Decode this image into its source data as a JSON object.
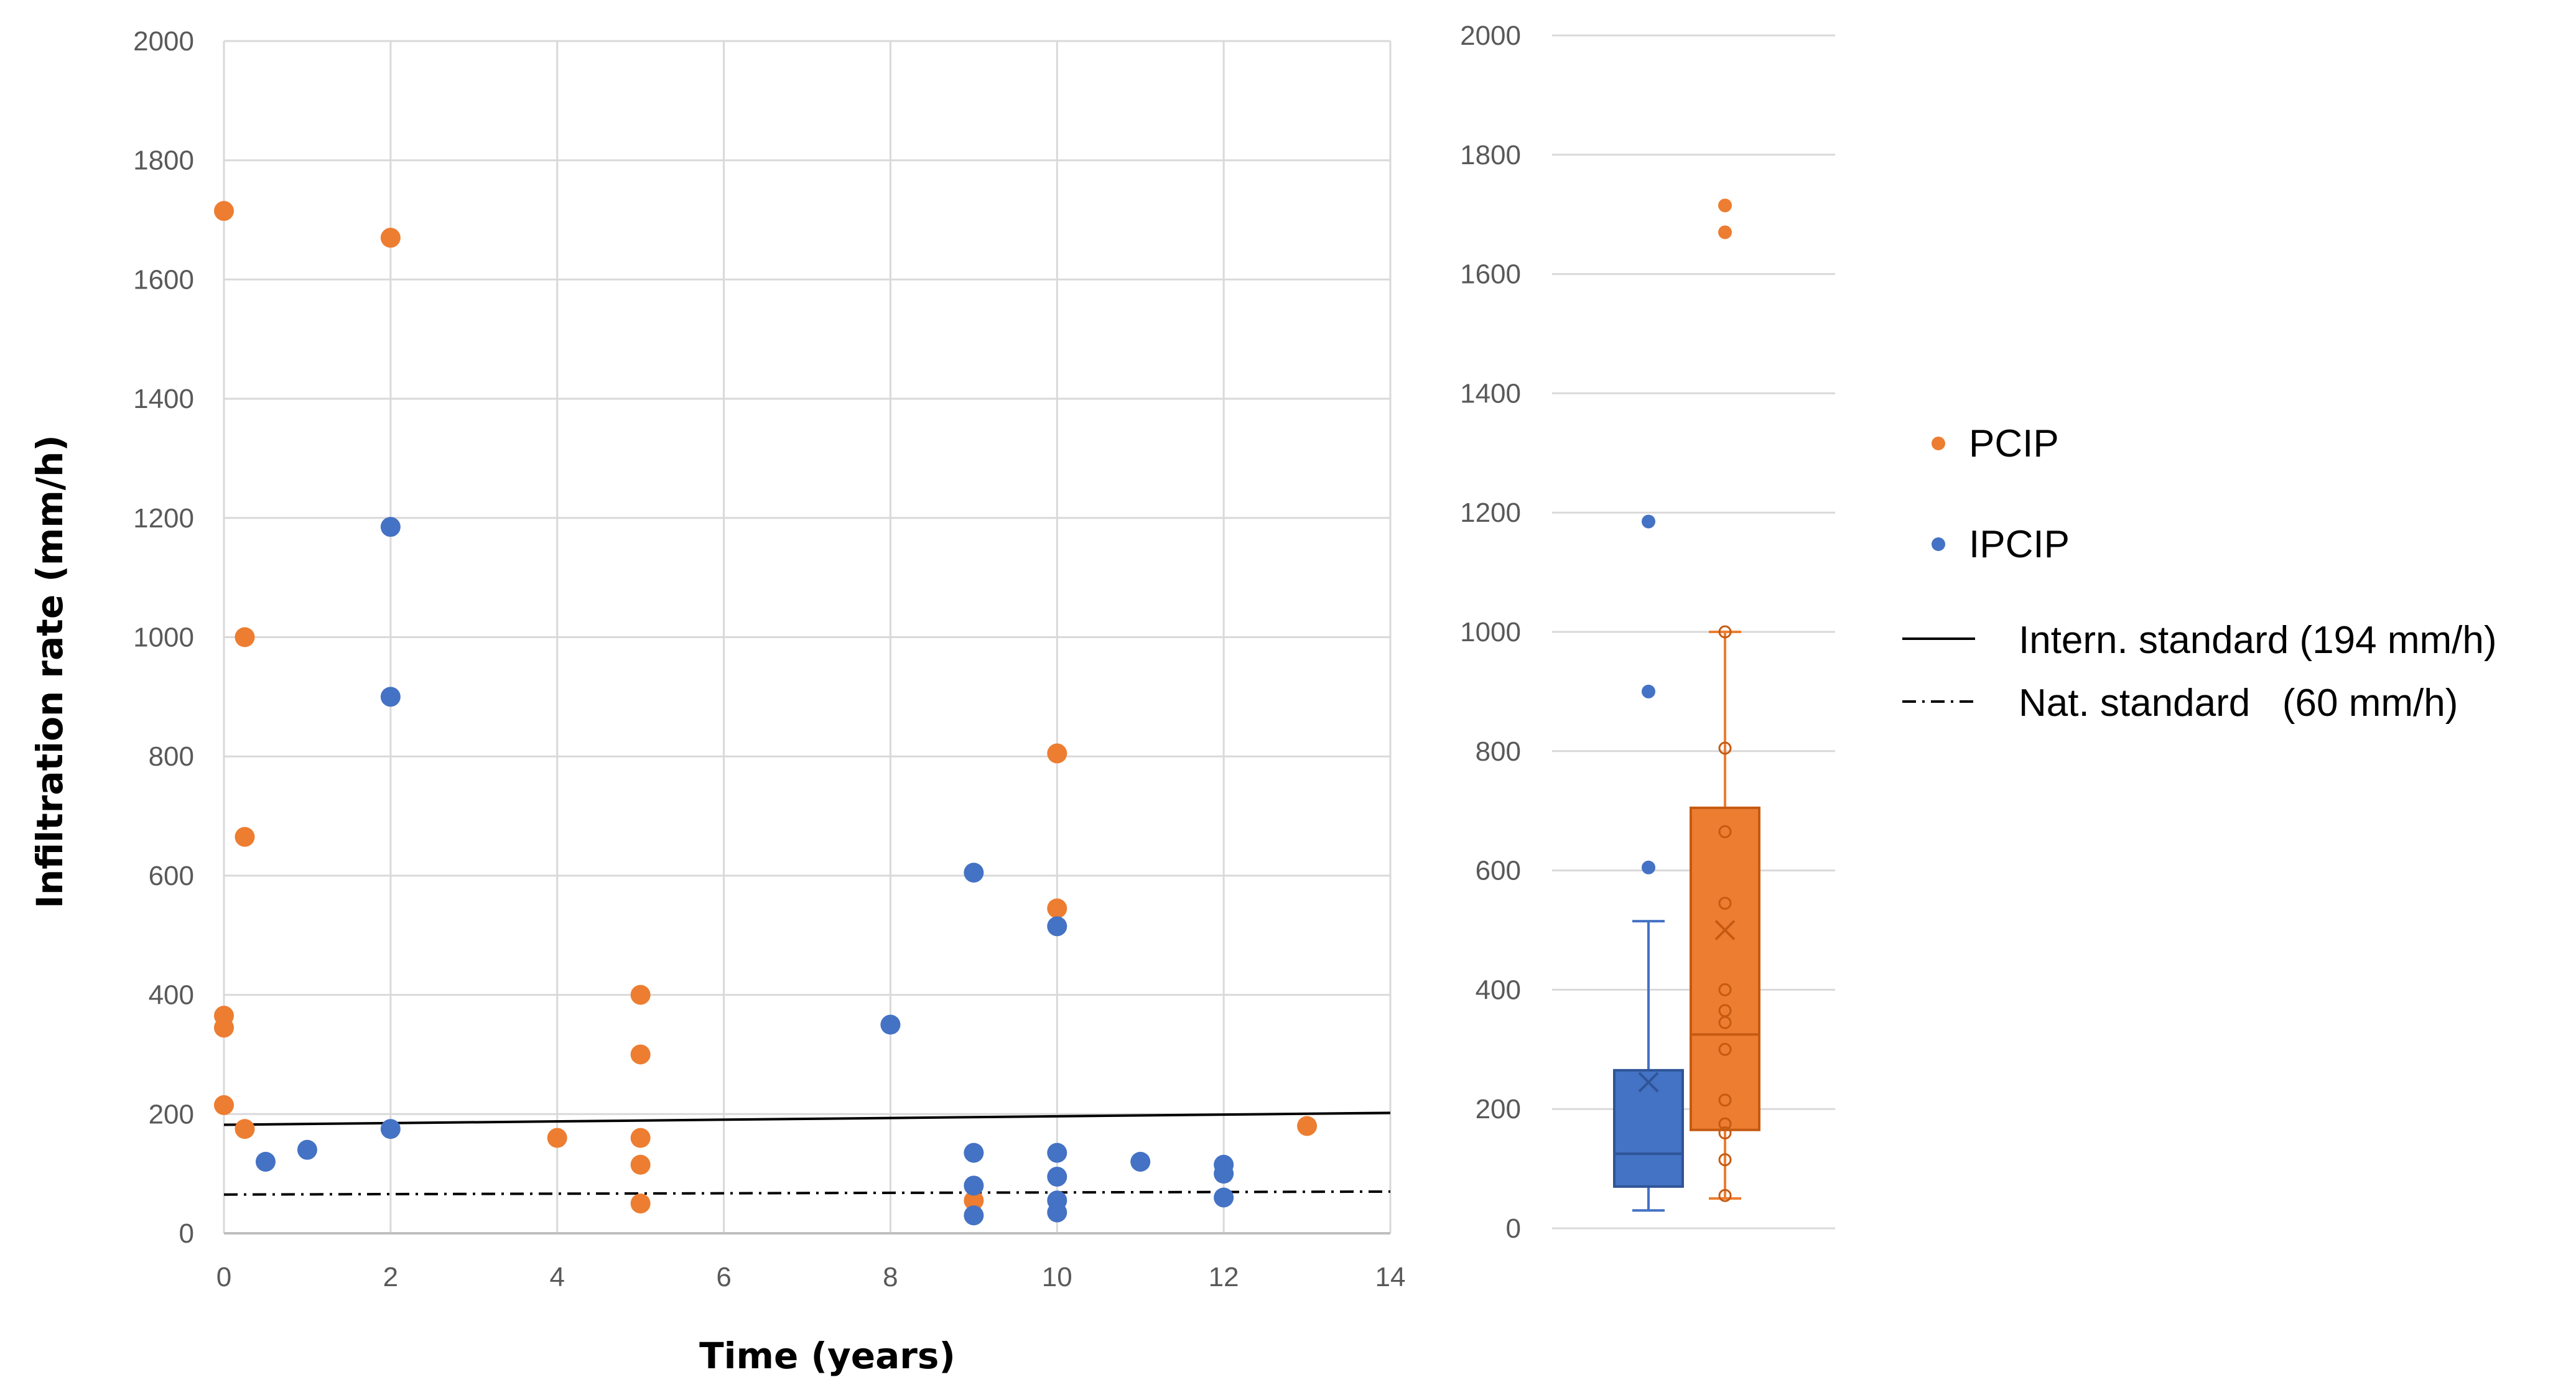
{
  "chart_data": [
    {
      "type": "scatter",
      "xlabel": "Time (years)",
      "ylabel": "Infiltration rate (mm/h)",
      "xlim": [
        0,
        14
      ],
      "ylim": [
        0,
        2000
      ],
      "xticks": [
        "0",
        "2",
        "4",
        "6",
        "8",
        "10",
        "12",
        "14"
      ],
      "yticks": [
        "0",
        "200",
        "400",
        "600",
        "800",
        "1000",
        "1200",
        "1400",
        "1600",
        "1800",
        "2000"
      ],
      "grid": true,
      "series": [
        {
          "name": "PCIP",
          "color": "#ED7D31",
          "points": [
            [
              0,
              1715
            ],
            [
              0,
              365
            ],
            [
              0,
              345
            ],
            [
              0,
              215
            ],
            [
              0.25,
              1000
            ],
            [
              0.25,
              665
            ],
            [
              0.25,
              175
            ],
            [
              2,
              1670
            ],
            [
              4,
              160
            ],
            [
              5,
              400
            ],
            [
              5,
              300
            ],
            [
              5,
              160
            ],
            [
              5,
              115
            ],
            [
              5,
              50
            ],
            [
              9,
              55
            ],
            [
              10,
              805
            ],
            [
              10,
              545
            ],
            [
              13,
              180
            ]
          ]
        },
        {
          "name": "IPCIP",
          "color": "#4472C4",
          "points": [
            [
              0.5,
              120
            ],
            [
              1,
              140
            ],
            [
              2,
              1185
            ],
            [
              2,
              900
            ],
            [
              2,
              175
            ],
            [
              8,
              350
            ],
            [
              9,
              605
            ],
            [
              9,
              135
            ],
            [
              9,
              80
            ],
            [
              9,
              30
            ],
            [
              10,
              515
            ],
            [
              10,
              135
            ],
            [
              10,
              95
            ],
            [
              10,
              55
            ],
            [
              10,
              35
            ],
            [
              11,
              120
            ],
            [
              12,
              115
            ],
            [
              12,
              100
            ],
            [
              12,
              60
            ]
          ]
        }
      ],
      "reference_lines": [
        {
          "name": "Intern. standard",
          "value": 194,
          "style": "solid",
          "color": "#000000"
        },
        {
          "name": "Nat. standard",
          "value": 60,
          "style": "dash-dot",
          "color": "#000000"
        }
      ]
    },
    {
      "type": "box",
      "ylim": [
        0,
        2000
      ],
      "yticks": [
        "0",
        "200",
        "400",
        "600",
        "800",
        "1000",
        "1200",
        "1400",
        "1600",
        "1800",
        "2000"
      ],
      "grid": true,
      "series": [
        {
          "name": "IPCIP",
          "color": "#4472C4",
          "min": 30,
          "q1": 70,
          "median": 125,
          "q3": 265,
          "max": 515,
          "mean": 245,
          "outliers": [
            605,
            900,
            1185
          ],
          "inner_points": []
        },
        {
          "name": "PCIP",
          "color": "#ED7D31",
          "min": 50,
          "q1": 165,
          "median": 325,
          "q3": 705,
          "max": 1000,
          "mean": 500,
          "outliers": [
            1670,
            1715
          ],
          "inner_points": [
            55,
            115,
            160,
            175,
            215,
            300,
            345,
            365,
            400,
            545,
            665,
            805,
            1000
          ]
        }
      ]
    }
  ],
  "legend": {
    "items": [
      {
        "label": "PCIP",
        "color": "#ED7D31",
        "marker": "dot"
      },
      {
        "label": "IPCIP",
        "color": "#4472C4",
        "marker": "dot"
      },
      {
        "label": "Intern. standard (194 mm/h)",
        "marker": "solid-line"
      },
      {
        "label": "Nat. standard   (60 mm/h)",
        "marker": "dash-dot-line"
      }
    ]
  }
}
